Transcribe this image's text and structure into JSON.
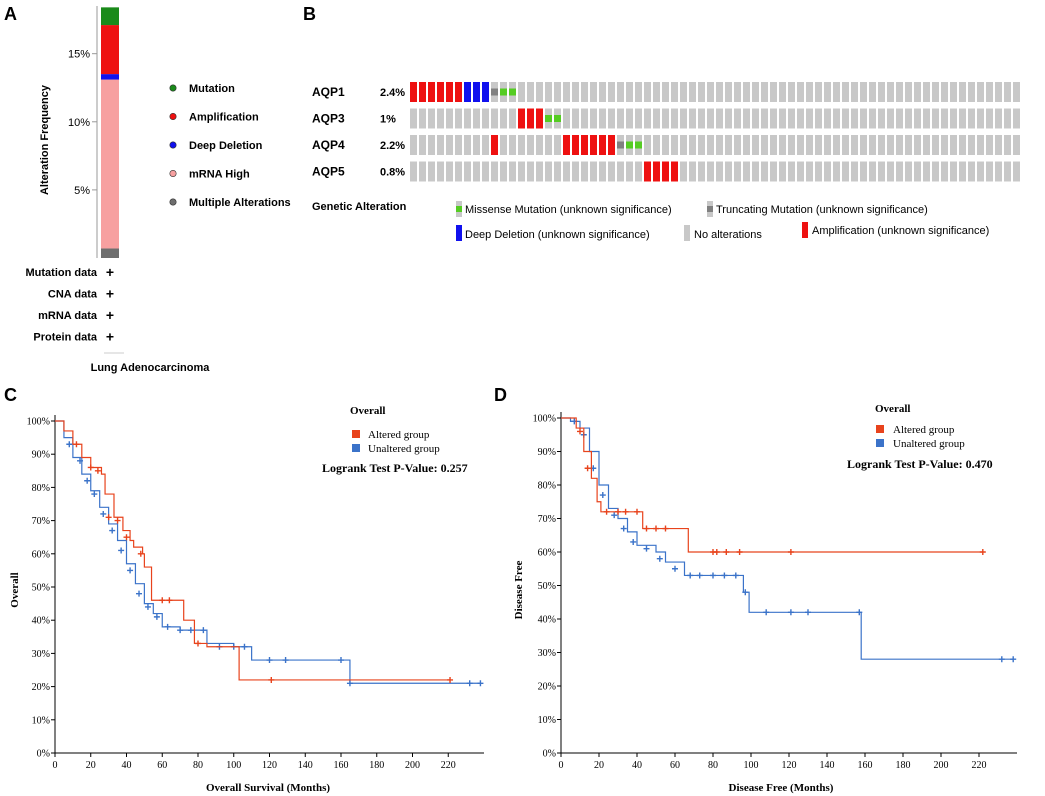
{
  "panel_labels": {
    "a": "A",
    "b": "B",
    "c": "C",
    "d": "D"
  },
  "colors": {
    "mutation": "#1a8a1a",
    "amplification": "#ee1111",
    "deep_deletion": "#1111ee",
    "mrna_high": "#f7a0a0",
    "multiple": "#6e6e6e",
    "missense": "#55cc22",
    "truncating": "#808080",
    "no_alteration": "#c8c8c8",
    "altered": "#e8431c",
    "unaltered": "#3b73c9"
  },
  "panel_a": {
    "legend": [
      "Mutation",
      "Amplification",
      "Deep Deletion",
      "mRNA High",
      "Multiple Alterations"
    ],
    "data_rows": [
      "Mutation data",
      "CNA data",
      "mRNA data",
      "Protein data"
    ],
    "row_marker": "+",
    "cancer_label": "Lung Adenocarcinoma"
  },
  "panel_b": {
    "title": "Genetic Alteration",
    "genes": [
      {
        "name": "AQP1",
        "pct": "2.4%"
      },
      {
        "name": "AQP3",
        "pct": "1%"
      },
      {
        "name": "AQP4",
        "pct": "2.2%"
      },
      {
        "name": "AQP5",
        "pct": "0.8%"
      }
    ],
    "legend": {
      "missense": "Missense Mutation (unknown significance)",
      "truncating": "Truncating Mutation (unknown significance)",
      "deep_deletion": "Deep Deletion (unknown significance)",
      "no_alterations": "No alterations",
      "amplification": "Amplification (unknown significance)"
    }
  },
  "chart_data": [
    {
      "type": "bar",
      "title": "",
      "ylabel": "Alteration Frequency",
      "categories": [
        "Lung Adenocarcinoma"
      ],
      "ylim": [
        0,
        18.5
      ],
      "yticks": [
        5,
        10,
        15
      ],
      "ytick_labels": [
        "5%",
        "10%",
        "15%"
      ],
      "series": [
        {
          "name": "Multiple Alterations",
          "values": [
            0.7
          ]
        },
        {
          "name": "mRNA High",
          "values": [
            12.4
          ]
        },
        {
          "name": "Deep Deletion",
          "values": [
            0.4
          ]
        },
        {
          "name": "Amplification",
          "values": [
            3.6
          ]
        },
        {
          "name": "Mutation",
          "values": [
            1.3
          ]
        }
      ]
    },
    {
      "type": "heatmap",
      "title": "Genetic Alteration",
      "rows": [
        "AQP1",
        "AQP3",
        "AQP4",
        "AQP5"
      ],
      "n_columns": 68,
      "cells": {
        "AQP1": [
          [
            "amp",
            0,
            5
          ],
          [
            "del",
            6,
            8
          ],
          [
            "trunc",
            9,
            9
          ],
          [
            "miss",
            10,
            11
          ]
        ],
        "AQP3": [
          [
            "amp",
            12,
            14
          ],
          [
            "miss",
            15,
            16
          ]
        ],
        "AQP4": [
          [
            "amp",
            9,
            9
          ],
          [
            "amp",
            17,
            22
          ],
          [
            "trunc",
            23,
            23
          ],
          [
            "miss",
            24,
            25
          ]
        ],
        "AQP5": [
          [
            "amp",
            26,
            29
          ]
        ]
      }
    },
    {
      "type": "line",
      "title": "Overall",
      "xlabel": "Overall Survival (Months)",
      "ylabel": "Overall",
      "xlim": [
        0,
        240
      ],
      "ylim": [
        0,
        100
      ],
      "xticks": [
        0,
        20,
        40,
        60,
        80,
        100,
        120,
        140,
        160,
        180,
        200,
        220
      ],
      "yticks": [
        0,
        10,
        20,
        30,
        40,
        50,
        60,
        70,
        80,
        90,
        100
      ],
      "annotation": "Logrank Test P-Value: 0.257",
      "series": [
        {
          "name": "Altered group",
          "steps": [
            [
              0,
              100
            ],
            [
              5,
              97
            ],
            [
              10,
              93
            ],
            [
              15,
              89
            ],
            [
              20,
              86
            ],
            [
              26,
              84
            ],
            [
              28,
              78
            ],
            [
              33,
              71
            ],
            [
              38,
              67
            ],
            [
              42,
              64
            ],
            [
              44,
              62
            ],
            [
              49,
              60
            ],
            [
              50,
              56
            ],
            [
              54,
              46
            ],
            [
              65,
              46
            ],
            [
              72,
              40
            ],
            [
              78,
              33
            ],
            [
              85,
              32
            ],
            [
              103,
              32
            ],
            [
              103,
              22
            ],
            [
              221,
              22
            ]
          ],
          "censored": [
            [
              12,
              93
            ],
            [
              20,
              86
            ],
            [
              24,
              85
            ],
            [
              30,
              71
            ],
            [
              35,
              70
            ],
            [
              40,
              65
            ],
            [
              48,
              60
            ],
            [
              60,
              46
            ],
            [
              64,
              46
            ],
            [
              80,
              33
            ],
            [
              121,
              22
            ],
            [
              221,
              22
            ]
          ]
        },
        {
          "name": "Unaltered group",
          "steps": [
            [
              0,
              100
            ],
            [
              5,
              95
            ],
            [
              10,
              89
            ],
            [
              15,
              84
            ],
            [
              20,
              79
            ],
            [
              25,
              74
            ],
            [
              30,
              69
            ],
            [
              35,
              64
            ],
            [
              40,
              57
            ],
            [
              45,
              51
            ],
            [
              50,
              45
            ],
            [
              55,
              42
            ],
            [
              60,
              38
            ],
            [
              70,
              37
            ],
            [
              80,
              37
            ],
            [
              85,
              33
            ],
            [
              100,
              32
            ],
            [
              109,
              32
            ],
            [
              110,
              28
            ],
            [
              163,
              28
            ],
            [
              165,
              21
            ],
            [
              238,
              21
            ]
          ],
          "censored": [
            [
              8,
              93
            ],
            [
              14,
              88
            ],
            [
              18,
              82
            ],
            [
              22,
              78
            ],
            [
              27,
              72
            ],
            [
              32,
              67
            ],
            [
              37,
              61
            ],
            [
              42,
              55
            ],
            [
              47,
              48
            ],
            [
              52,
              44
            ],
            [
              57,
              41
            ],
            [
              63,
              38
            ],
            [
              70,
              37
            ],
            [
              76,
              37
            ],
            [
              83,
              37
            ],
            [
              92,
              32
            ],
            [
              100,
              32
            ],
            [
              106,
              32
            ],
            [
              120,
              28
            ],
            [
              129,
              28
            ],
            [
              160,
              28
            ],
            [
              165,
              21
            ],
            [
              232,
              21
            ],
            [
              238,
              21
            ]
          ]
        }
      ]
    },
    {
      "type": "line",
      "title": "Overall",
      "xlabel": "Disease Free (Months)",
      "ylabel": "Disease Free",
      "xlim": [
        0,
        240
      ],
      "ylim": [
        0,
        100
      ],
      "xticks": [
        0,
        20,
        40,
        60,
        80,
        100,
        120,
        140,
        160,
        180,
        200,
        220
      ],
      "yticks": [
        0,
        10,
        20,
        30,
        40,
        50,
        60,
        70,
        80,
        90,
        100
      ],
      "annotation": "Logrank Test P-Value: 0.470",
      "series": [
        {
          "name": "Altered group",
          "steps": [
            [
              0,
              100
            ],
            [
              8,
              97
            ],
            [
              12,
              90
            ],
            [
              16,
              82
            ],
            [
              19,
              75
            ],
            [
              21,
              72
            ],
            [
              42,
              72
            ],
            [
              43,
              67
            ],
            [
              67,
              67
            ],
            [
              67,
              60
            ],
            [
              222,
              60
            ]
          ],
          "censored": [
            [
              10,
              96
            ],
            [
              14,
              85
            ],
            [
              24,
              72
            ],
            [
              30,
              72
            ],
            [
              34,
              72
            ],
            [
              40,
              72
            ],
            [
              45,
              67
            ],
            [
              50,
              67
            ],
            [
              55,
              67
            ],
            [
              80,
              60
            ],
            [
              82,
              60
            ],
            [
              87,
              60
            ],
            [
              94,
              60
            ],
            [
              121,
              60
            ],
            [
              222,
              60
            ]
          ]
        },
        {
          "name": "Unaltered group",
          "steps": [
            [
              0,
              100
            ],
            [
              5,
              99
            ],
            [
              10,
              97
            ],
            [
              15,
              90
            ],
            [
              20,
              80
            ],
            [
              25,
              73
            ],
            [
              30,
              70
            ],
            [
              35,
              66
            ],
            [
              40,
              62
            ],
            [
              50,
              60
            ],
            [
              55,
              57
            ],
            [
              65,
              53
            ],
            [
              75,
              53
            ],
            [
              94,
              53
            ],
            [
              96,
              48
            ],
            [
              99,
              42
            ],
            [
              157,
              42
            ],
            [
              158,
              28
            ],
            [
              238,
              28
            ]
          ],
          "censored": [
            [
              7,
              99
            ],
            [
              12,
              95
            ],
            [
              17,
              85
            ],
            [
              22,
              77
            ],
            [
              28,
              71
            ],
            [
              33,
              67
            ],
            [
              38,
              63
            ],
            [
              45,
              61
            ],
            [
              52,
              58
            ],
            [
              60,
              55
            ],
            [
              68,
              53
            ],
            [
              73,
              53
            ],
            [
              80,
              53
            ],
            [
              86,
              53
            ],
            [
              92,
              53
            ],
            [
              97,
              48
            ],
            [
              108,
              42
            ],
            [
              121,
              42
            ],
            [
              130,
              42
            ],
            [
              157,
              42
            ],
            [
              232,
              28
            ],
            [
              238,
              28
            ]
          ]
        }
      ]
    }
  ]
}
